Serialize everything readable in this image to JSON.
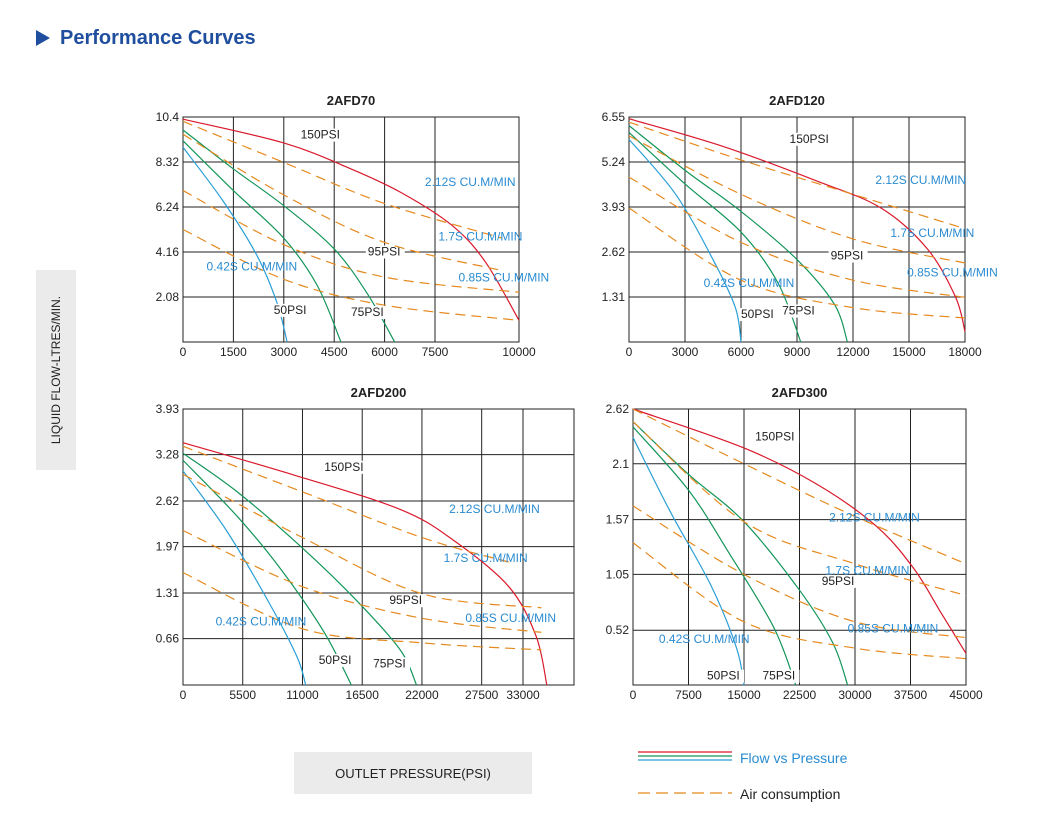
{
  "header": {
    "title": "Performance Curves"
  },
  "axes": {
    "ylabel": "LIQUID FLOW-LTRES/MIN.",
    "xlabel": "OUTLET PRESSURE(PSI)"
  },
  "legend": {
    "flow": "Flow vs Pressure",
    "air": "Air consumption"
  },
  "colors": {
    "heading": "#1f4e9e",
    "red": "#d9192b",
    "green": "#13955a",
    "blue": "#2a9fd6",
    "orange": "#e58a1f",
    "label_blue": "#2a8bd0"
  },
  "chart_data": [
    {
      "type": "line",
      "title": "2AFD70",
      "x_ticks": [
        "0",
        "1500",
        "3000",
        "4500",
        "6000",
        "7500",
        "10000"
      ],
      "y_ticks": [
        "2.08",
        "4.16",
        "6.24",
        "8.32",
        "10.4"
      ],
      "x_range": [
        0,
        10000
      ],
      "y_range": [
        0,
        10.4
      ],
      "series": [
        {
          "name": "150PSI",
          "color": "red",
          "label_at": [
            3500,
            9.4
          ],
          "x": [
            0,
            3000,
            5000,
            6500,
            8000,
            9000,
            10000
          ],
          "y": [
            10.3,
            9.2,
            8.0,
            6.9,
            5.4,
            3.7,
            1.0
          ]
        },
        {
          "name": "95PSI",
          "color": "green",
          "label_at": [
            5500,
            4.0
          ],
          "x": [
            0,
            1500,
            3000,
            4500,
            5500,
            6300
          ],
          "y": [
            9.8,
            8.0,
            6.3,
            4.3,
            2.2,
            0
          ]
        },
        {
          "name": "75PSI",
          "color": "green",
          "label_at": [
            5000,
            1.2
          ],
          "x": [
            0,
            1500,
            3000,
            4000,
            4700
          ],
          "y": [
            9.3,
            7.0,
            4.8,
            2.6,
            0
          ]
        },
        {
          "name": "50PSI",
          "color": "blue",
          "label_at": [
            2700,
            1.3
          ],
          "x": [
            0,
            1200,
            2200,
            2800,
            3100
          ],
          "y": [
            9.0,
            6.5,
            4.0,
            1.8,
            0
          ]
        },
        {
          "name": "2.12S CU.M/MIN",
          "color": "orange",
          "dashed": true,
          "label_at": [
            7200,
            7.2
          ],
          "x": [
            0,
            3000,
            6000,
            9500
          ],
          "y": [
            10.2,
            8.3,
            6.4,
            4.8
          ]
        },
        {
          "name": "1.7S CU.M/MIN",
          "color": "orange",
          "dashed": true,
          "label_at": [
            7600,
            4.7
          ],
          "x": [
            0,
            3000,
            6000,
            9500
          ],
          "y": [
            9.6,
            6.8,
            4.6,
            3.3
          ]
        },
        {
          "name": "0.85S CU.M/MIN",
          "color": "orange",
          "dashed": true,
          "label_at": [
            8200,
            2.8
          ],
          "x": [
            0,
            3000,
            6000,
            10000
          ],
          "y": [
            7.0,
            4.5,
            3.0,
            2.3
          ]
        },
        {
          "name": "0.42S CU.M/MIN",
          "color": "orange",
          "dashed": true,
          "label_at": [
            700,
            3.3
          ],
          "x": [
            0,
            3000,
            6000,
            10000
          ],
          "y": [
            5.2,
            2.9,
            1.7,
            1.0
          ]
        }
      ]
    },
    {
      "type": "line",
      "title": "2AFD120",
      "x_ticks": [
        "0",
        "3000",
        "6000",
        "9000",
        "12000",
        "15000",
        "18000"
      ],
      "y_ticks": [
        "1.31",
        "2.62",
        "3.93",
        "5.24",
        "6.55"
      ],
      "x_range": [
        0,
        18000
      ],
      "y_range": [
        0,
        6.55
      ],
      "series": [
        {
          "name": "150PSI",
          "color": "red",
          "label_at": [
            8600,
            5.8
          ],
          "x": [
            0,
            5000,
            10000,
            13500,
            16000,
            17500,
            18000
          ],
          "y": [
            6.5,
            5.7,
            4.7,
            3.9,
            2.7,
            1.3,
            0.3
          ]
        },
        {
          "name": "95PSI",
          "color": "green",
          "label_at": [
            10800,
            2.4
          ],
          "x": [
            0,
            3000,
            6000,
            9000,
            11000,
            11700
          ],
          "y": [
            6.3,
            5.0,
            3.8,
            2.4,
            1.1,
            0
          ]
        },
        {
          "name": "75PSI",
          "color": "green",
          "label_at": [
            8200,
            0.8
          ],
          "x": [
            0,
            3000,
            6000,
            8000,
            9200
          ],
          "y": [
            6.1,
            4.6,
            3.2,
            1.7,
            0
          ]
        },
        {
          "name": "50PSI",
          "color": "blue",
          "label_at": [
            6000,
            0.7
          ],
          "x": [
            0,
            2500,
            4500,
            5700,
            6000
          ],
          "y": [
            5.9,
            4.3,
            2.4,
            1.0,
            0
          ]
        },
        {
          "name": "2.12S CU.M/MIN",
          "color": "orange",
          "dashed": true,
          "label_at": [
            13200,
            4.6
          ],
          "x": [
            0,
            6000,
            12000,
            18000
          ],
          "y": [
            6.4,
            5.3,
            4.3,
            3.3
          ]
        },
        {
          "name": "1.7S CU.M/MIN",
          "color": "orange",
          "dashed": true,
          "label_at": [
            14000,
            3.05
          ],
          "x": [
            0,
            6000,
            12000,
            18000
          ],
          "y": [
            6.0,
            4.3,
            3.0,
            2.3
          ]
        },
        {
          "name": "0.85S CU.M/MIN",
          "color": "orange",
          "dashed": true,
          "label_at": [
            14900,
            1.9
          ],
          "x": [
            0,
            6000,
            12000,
            18000
          ],
          "y": [
            4.8,
            2.9,
            1.8,
            1.3
          ]
        },
        {
          "name": "0.42S CU.M/MIN",
          "color": "orange",
          "dashed": true,
          "label_at": [
            4000,
            1.6
          ],
          "x": [
            0,
            6000,
            12000,
            18000
          ],
          "y": [
            3.9,
            1.8,
            1.0,
            0.7
          ]
        }
      ]
    },
    {
      "type": "line",
      "title": "2AFD200",
      "x_ticks": [
        "0",
        "5500",
        "11000",
        "16500",
        "22000",
        "27500",
        "33000"
      ],
      "y_ticks": [
        "0.66",
        "1.31",
        "1.97",
        "2.62",
        "3.28",
        "3.93"
      ],
      "x_range": [
        0,
        36000
      ],
      "y_range": [
        0,
        3.93
      ],
      "series": [
        {
          "name": "150PSI",
          "color": "red",
          "label_at": [
            13000,
            3.05
          ],
          "x": [
            0,
            10000,
            20000,
            25000,
            30000,
            32500,
            33500
          ],
          "y": [
            3.45,
            3.0,
            2.5,
            2.05,
            1.4,
            0.7,
            0
          ]
        },
        {
          "name": "95PSI",
          "color": "green",
          "label_at": [
            19000,
            1.15
          ],
          "x": [
            0,
            5000,
            11000,
            16000,
            20000,
            21500
          ],
          "y": [
            3.3,
            2.75,
            1.95,
            1.2,
            0.5,
            0
          ]
        },
        {
          "name": "75PSI",
          "color": "green",
          "label_at": [
            17500,
            0.25
          ],
          "x": [
            0,
            5000,
            9000,
            13000,
            15500
          ],
          "y": [
            3.2,
            2.4,
            1.65,
            0.75,
            0
          ]
        },
        {
          "name": "50PSI",
          "color": "blue",
          "label_at": [
            12500,
            0.3
          ],
          "x": [
            0,
            4000,
            8000,
            10500,
            11300
          ],
          "y": [
            3.05,
            2.2,
            1.15,
            0.4,
            0
          ]
        },
        {
          "name": "2.12S CU.M/MIN",
          "color": "orange",
          "dashed": true,
          "label_at": [
            24500,
            2.45
          ],
          "x": [
            0,
            11000,
            22000,
            30000
          ],
          "y": [
            3.4,
            2.75,
            2.1,
            1.75
          ]
        },
        {
          "name": "1.7S CU.M/MIN",
          "color": "orange",
          "dashed": true,
          "label_at": [
            24000,
            1.75
          ],
          "x": [
            0,
            11000,
            22000,
            33000
          ],
          "y": [
            3.0,
            2.1,
            1.3,
            1.1
          ]
        },
        {
          "name": "0.85S CU.M/MIN",
          "color": "orange",
          "dashed": true,
          "label_at": [
            26000,
            0.9
          ],
          "x": [
            0,
            11000,
            22000,
            33000
          ],
          "y": [
            2.2,
            1.4,
            0.95,
            0.75
          ]
        },
        {
          "name": "0.42S CU.M/MIN",
          "color": "orange",
          "dashed": true,
          "label_at": [
            3000,
            0.85
          ],
          "x": [
            0,
            11000,
            22000,
            33000
          ],
          "y": [
            1.6,
            0.8,
            0.6,
            0.5
          ]
        }
      ]
    },
    {
      "type": "line",
      "title": "2AFD300",
      "x_ticks": [
        "0",
        "7500",
        "15000",
        "22500",
        "30000",
        "37500",
        "45000"
      ],
      "y_ticks": [
        "0.52",
        "1.05",
        "1.57",
        "2.1",
        "2.62"
      ],
      "x_range": [
        0,
        45000
      ],
      "y_range": [
        0,
        2.62
      ],
      "series": [
        {
          "name": "150PSI",
          "color": "red",
          "label_at": [
            16500,
            2.32
          ],
          "x": [
            0,
            15000,
            25000,
            33000,
            38000,
            41500,
            45000
          ],
          "y": [
            2.62,
            2.25,
            1.9,
            1.5,
            1.1,
            0.7,
            0.3
          ]
        },
        {
          "name": "95PSI",
          "color": "green",
          "label_at": [
            25500,
            0.95
          ],
          "x": [
            0,
            7500,
            15000,
            22500,
            27000,
            29000
          ],
          "y": [
            2.5,
            2.0,
            1.55,
            0.9,
            0.4,
            0
          ]
        },
        {
          "name": "75PSI",
          "color": "green",
          "label_at": [
            17500,
            0.05
          ],
          "x": [
            0,
            7500,
            13000,
            19000,
            22000
          ],
          "y": [
            2.45,
            1.85,
            1.25,
            0.55,
            0
          ]
        },
        {
          "name": "50PSI",
          "color": "blue",
          "label_at": [
            10000,
            0.05
          ],
          "x": [
            0,
            5000,
            10500,
            14000,
            15000
          ],
          "y": [
            2.35,
            1.65,
            0.95,
            0.35,
            0
          ]
        },
        {
          "name": "2.12S CU.M/MIN",
          "color": "orange",
          "dashed": true,
          "label_at": [
            26500,
            1.55
          ],
          "x": [
            0,
            15000,
            30000,
            45000
          ],
          "y": [
            2.62,
            2.1,
            1.6,
            1.15
          ]
        },
        {
          "name": "1.7S CU.M/MIN",
          "color": "orange",
          "dashed": true,
          "label_at": [
            26000,
            1.05
          ],
          "x": [
            0,
            15000,
            30000,
            45000
          ],
          "y": [
            2.5,
            1.55,
            1.15,
            0.85
          ]
        },
        {
          "name": "0.85S CU.M/MIN",
          "color": "orange",
          "dashed": true,
          "label_at": [
            29000,
            0.5
          ],
          "x": [
            0,
            15000,
            30000,
            45000
          ],
          "y": [
            1.7,
            1.05,
            0.6,
            0.45
          ]
        },
        {
          "name": "0.42S CU.M/MIN",
          "color": "orange",
          "dashed": true,
          "label_at": [
            3500,
            0.4
          ],
          "x": [
            0,
            15000,
            30000,
            45000
          ],
          "y": [
            1.35,
            0.6,
            0.35,
            0.25
          ]
        }
      ]
    }
  ]
}
